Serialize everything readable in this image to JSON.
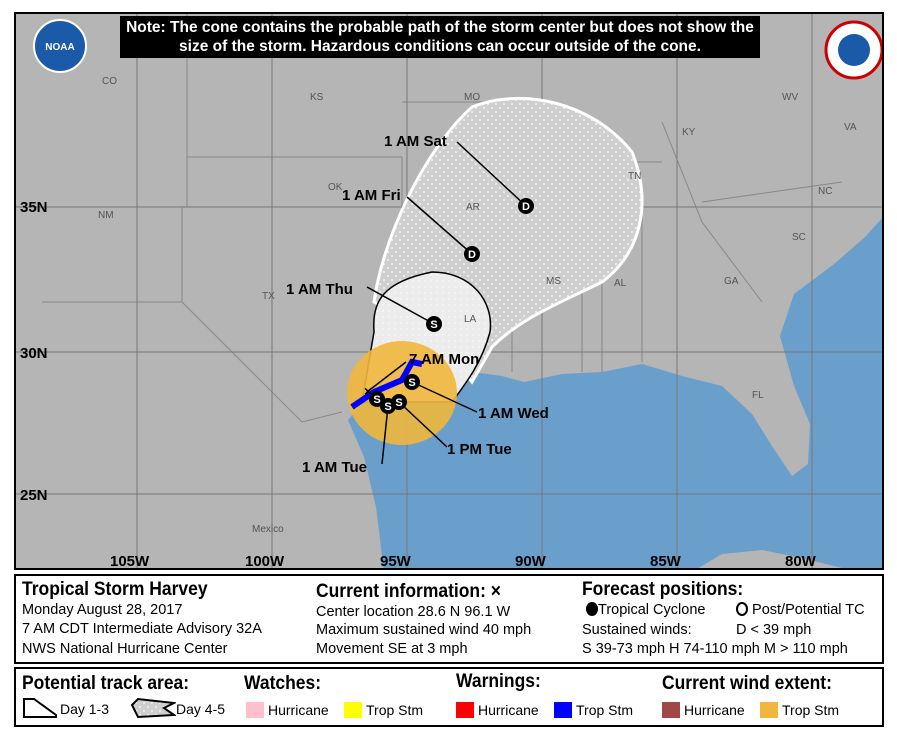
{
  "note": "Note: The cone contains the probable path of the storm center but does not show the size of the storm. Hazardous conditions can occur outside of the cone.",
  "logos": {
    "left": "NOAA",
    "right": "NATIONAL WEATHER SERVICE"
  },
  "map": {
    "lat_labels": [
      "35N",
      "30N",
      "25N"
    ],
    "lon_labels": [
      "105W",
      "100W",
      "95W",
      "90W",
      "85W",
      "80W"
    ],
    "states": [
      "CO",
      "KS",
      "MO",
      "KY",
      "WV",
      "VA",
      "OK",
      "NM",
      "AR",
      "TN",
      "NC",
      "SC",
      "GA",
      "AL",
      "MS",
      "TX",
      "LA",
      "FL",
      "Mexico"
    ],
    "track_labels": [
      "1 AM Sat",
      "1 AM Fri",
      "1 AM Thu",
      "7 AM Mon",
      "1 AM Wed",
      "1 PM Tue",
      "1 AM Tue"
    ],
    "forecast_symbols": [
      "D",
      "D",
      "S",
      "S",
      "S",
      "S",
      "S"
    ],
    "colors": {
      "land": "#b5b5b5",
      "ocean": "#6b9fcb",
      "trop_stm_warning": "#0000ff",
      "trop_stm_wind": "#f0b73c"
    }
  },
  "info": {
    "storm_title": "Tropical Storm Harvey",
    "date": "Monday August 28, 2017",
    "advisory": "7 AM CDT Intermediate Advisory 32A",
    "center": "NWS National Hurricane Center",
    "current_title": "Current information: ×",
    "location": "Center location 28.6 N 96.1 W",
    "wind": "Maximum sustained wind 40 mph",
    "movement": "Movement SE at 3 mph",
    "forecast_title": "Forecast positions:",
    "tc": "Tropical Cyclone",
    "ptc": "Post/Potential TC",
    "sustained": "Sustained winds:",
    "d": "D < 39 mph",
    "shm": "S 39-73 mph  H 74-110 mph  M > 110 mph"
  },
  "legend": {
    "track_title": "Potential track area:",
    "day13": "Day 1-3",
    "day45": "Day 4-5",
    "watches_title": "Watches:",
    "warnings_title": "Warnings:",
    "wind_title": "Current wind extent:",
    "hurricane": "Hurricane",
    "trop_stm": "Trop Stm",
    "colors": {
      "hurricane_watch": "#ffc0cb",
      "ts_watch": "#ffff00",
      "hurricane_warning": "#ff0000",
      "ts_warning": "#0000ff",
      "hurricane_wind": "#a04848",
      "ts_wind": "#f0b73c"
    }
  }
}
